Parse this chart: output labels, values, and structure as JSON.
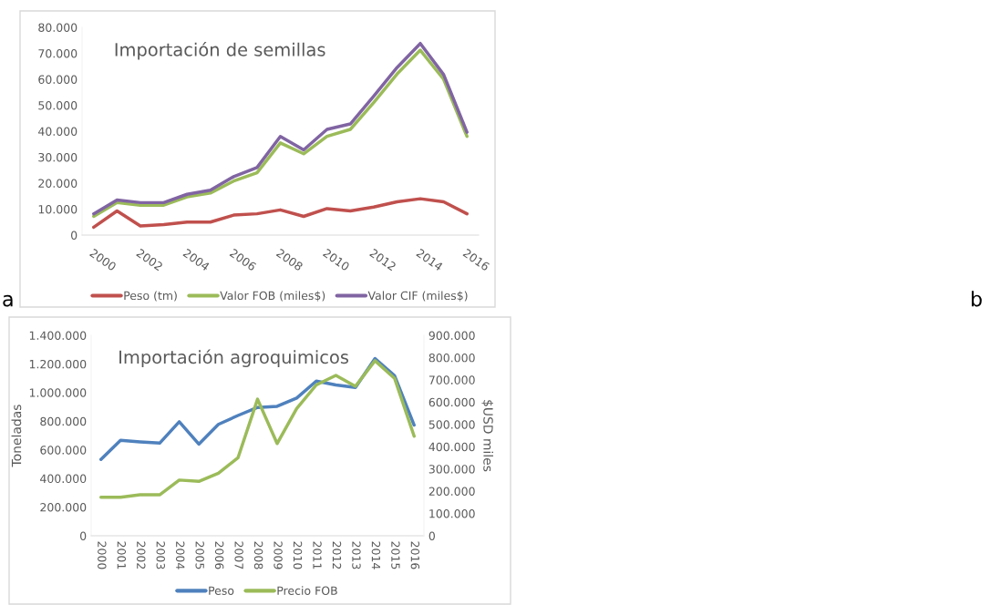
{
  "chart_data": [
    {
      "type": "line",
      "title": "Importación de semillas",
      "categories": [
        "2000",
        null,
        "2002",
        null,
        "2004",
        null,
        "2006",
        null,
        "2008",
        null,
        "2010",
        null,
        "2012",
        null,
        "2014",
        null,
        "2016"
      ],
      "series": [
        {
          "name": "Peso (tm)",
          "color": "#c0504d",
          "values": [
            3000,
            9300,
            3500,
            4000,
            5000,
            5000,
            7700,
            8200,
            9700,
            7200,
            10200,
            9300,
            10800,
            12800,
            14000,
            12800,
            8200
          ]
        },
        {
          "name": "Valor FOB (miles$)",
          "color": "#9bbb59",
          "values": [
            7200,
            12500,
            11500,
            11500,
            14700,
            16200,
            20800,
            24000,
            35500,
            31300,
            38000,
            40700,
            51000,
            62000,
            71200,
            60000,
            38000
          ]
        },
        {
          "name": "Valor CIF (miles$)",
          "color": "#8064a2",
          "values": [
            8200,
            13500,
            12500,
            12500,
            15700,
            17300,
            22500,
            26000,
            38000,
            32800,
            40700,
            42800,
            53500,
            64500,
            73800,
            61800,
            39600
          ]
        }
      ],
      "ylim": [
        0,
        80000
      ],
      "yticks": [
        0,
        {
          "value": 10000,
          "label": "10.000"
        },
        {
          "value": 20000,
          "label": "20.000"
        },
        {
          "value": 30000,
          "label": "30.000"
        },
        {
          "value": 40000,
          "label": "40.000"
        },
        {
          "value": 50000,
          "label": "50.000"
        },
        {
          "value": 60000,
          "label": "60.000"
        },
        {
          "value": 70000,
          "label": "70.000"
        },
        {
          "value": 80000,
          "label": "80.000"
        }
      ],
      "legend": "bottom",
      "annotations": [
        "a"
      ]
    },
    {
      "type": "line",
      "title": "Importación agroquimicos",
      "ylabel": "Toneladas",
      "y2label": "$USD miles",
      "categories": [
        "2000",
        "2001",
        "2002",
        "2003",
        "2004",
        "2005",
        "2006",
        "2007",
        "2008",
        "2009",
        "2010",
        "2011",
        "2012",
        "2013",
        "2014",
        "2015",
        "2016"
      ],
      "series": [
        {
          "name": "Peso",
          "color": "#4f81bd",
          "values": [
            533000,
            667000,
            656000,
            647000,
            796000,
            640000,
            778000,
            840000,
            896000,
            904000,
            962000,
            1080000,
            1053000,
            1036000,
            1238000,
            1118000,
            773000
          ]
        },
        {
          "name": "Precio FOB",
          "color": "#9bbb59",
          "axis": "y2",
          "values": [
            173000,
            173000,
            184000,
            184000,
            250000,
            244000,
            281000,
            350000,
            613000,
            414000,
            571000,
            677000,
            720000,
            671000,
            786000,
            707000,
            447000
          ]
        }
      ],
      "ylim": [
        0,
        1400000
      ],
      "yticks": [
        0,
        {
          "value": 200000,
          "label": "200.000"
        },
        {
          "value": 400000,
          "label": "400.000"
        },
        {
          "value": 600000,
          "label": "600.000"
        },
        {
          "value": 800000,
          "label": "800.000"
        },
        {
          "value": 1000000,
          "label": "1.000.000"
        },
        {
          "value": 1200000,
          "label": "1.200.000"
        },
        {
          "value": 1400000,
          "label": "1.400.000"
        }
      ],
      "y2lim": [
        0,
        900000
      ],
      "y2ticks": [
        0,
        {
          "value": 100000,
          "label": "100.000"
        },
        {
          "value": 200000,
          "label": "200.000"
        },
        {
          "value": 300000,
          "label": "300.000"
        },
        {
          "value": 400000,
          "label": "400.000"
        },
        {
          "value": 500000,
          "label": "500.000"
        },
        {
          "value": 600000,
          "label": "600.000"
        },
        {
          "value": 700000,
          "label": "700.000"
        },
        {
          "value": 800000,
          "label": "800.000"
        },
        {
          "value": 900000,
          "label": "900.000"
        }
      ],
      "legend": "bottom",
      "annotations": [
        "b"
      ]
    }
  ]
}
